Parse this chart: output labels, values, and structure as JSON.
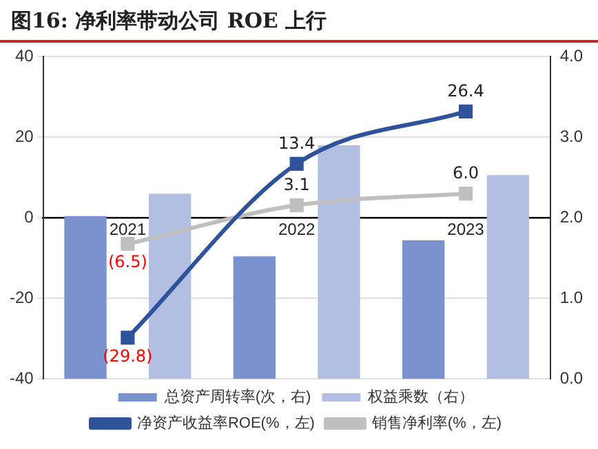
{
  "chart_data": {
    "type": "bar",
    "title": "图16: 净利率带动公司 ROE 上行",
    "categories": [
      "2021",
      "2022",
      "2023"
    ],
    "series": [
      {
        "name": "总资产周转率(次，右)",
        "axis": "y2",
        "color": "#7a93cf",
        "values": [
          2.02,
          1.52,
          1.72
        ]
      },
      {
        "name": "权益乘数（右）",
        "axis": "y2",
        "color": "#b3bfe2",
        "values": [
          2.3,
          2.9,
          2.53
        ]
      },
      {
        "name": "净资产收益率ROE(%，左)",
        "type": "line",
        "color": "#2f539b",
        "marker": "square",
        "values": [
          -29.8,
          13.4,
          26.4
        ],
        "value_labels": [
          "(29.8)",
          "13.4",
          "26.4"
        ]
      },
      {
        "name": "销售净利率(%，左)",
        "type": "line",
        "color": "#bfbfbf",
        "marker": "square",
        "values": [
          -6.5,
          3.1,
          6.0
        ],
        "value_labels": [
          "(6.5)",
          "3.1",
          "6.0"
        ]
      }
    ],
    "ylim": [
      -40,
      40
    ],
    "yticks": [
      -40,
      -20,
      0,
      20,
      40
    ],
    "y2lim": [
      0,
      4
    ],
    "y2ticks": [
      {
        "value": 0,
        "label": "0.0"
      },
      {
        "value": 1,
        "label": "1.0"
      },
      {
        "value": 2,
        "label": "2.0"
      },
      {
        "value": 3,
        "label": "3.0"
      },
      {
        "value": 4,
        "label": "4.0"
      }
    ],
    "grid": "y",
    "legend": "bottom"
  }
}
